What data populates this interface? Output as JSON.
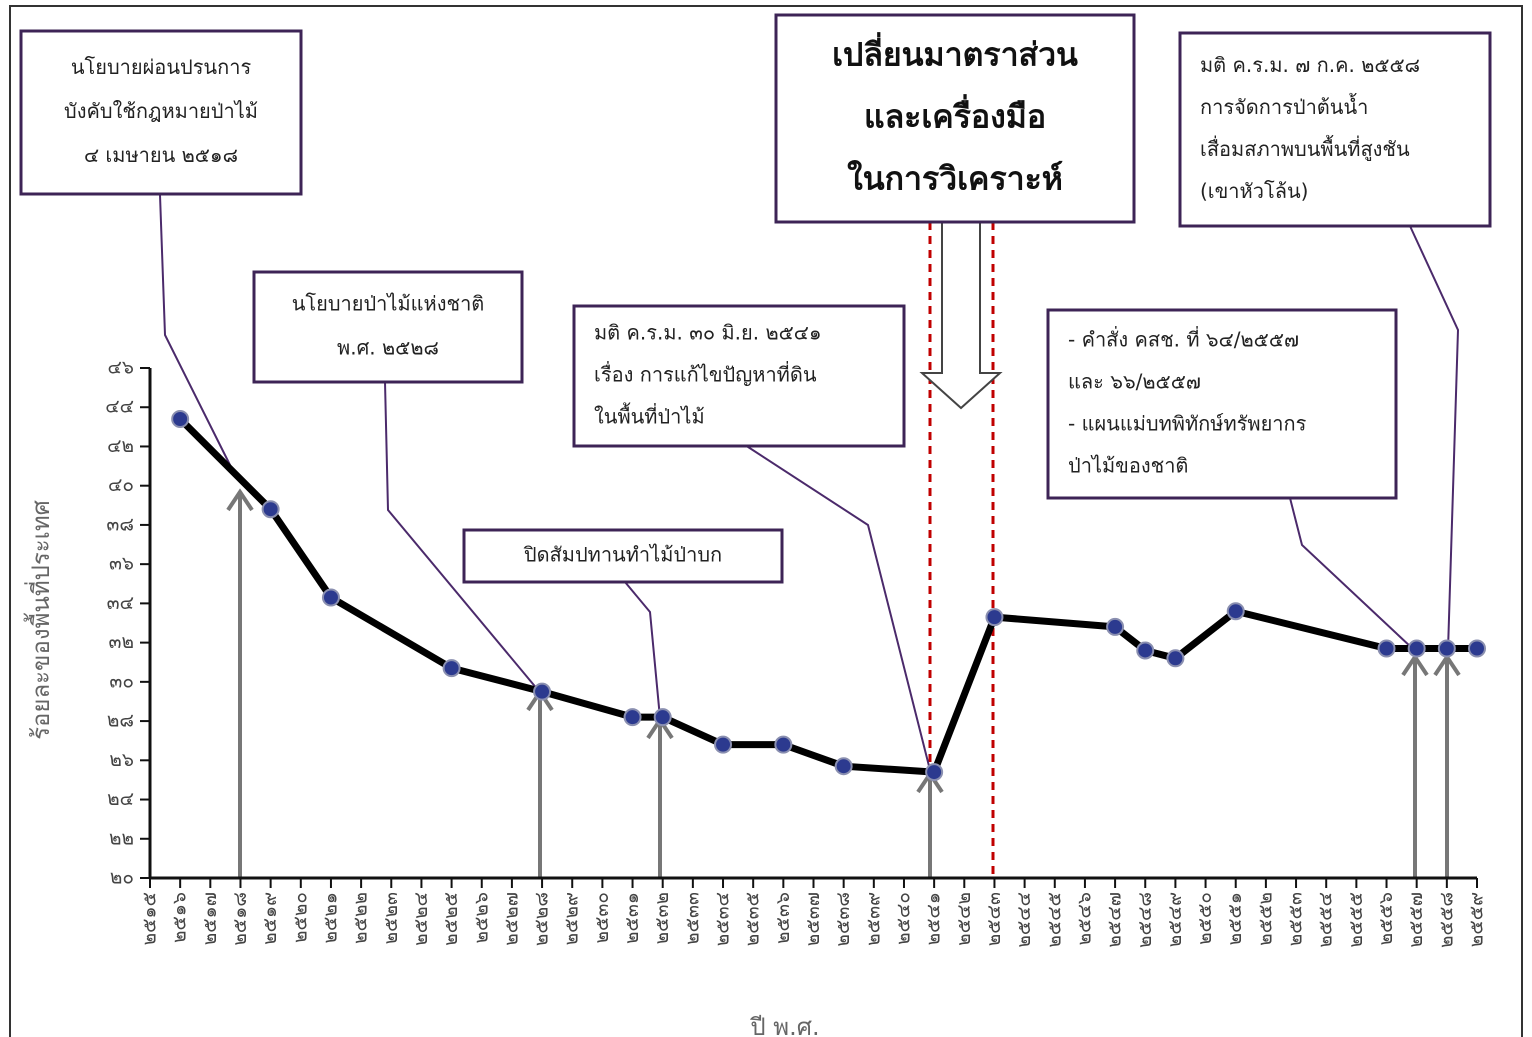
{
  "chart_data": {
    "type": "line",
    "x_label": "ปี พ.ศ.",
    "y_label": "ร้อยละของพื้นที่ประเทศ",
    "x": [
      2516,
      2519,
      2521,
      2525,
      2528,
      2531,
      2532,
      2534,
      2536,
      2538,
      2541,
      2543,
      2547,
      2548,
      2549,
      2551,
      2556,
      2557,
      2558,
      2559
    ],
    "series": [
      {
        "color": "#000000",
        "marker_color": "#2c3a8f",
        "values": [
          43.4,
          38.8,
          34.3,
          30.7,
          29.5,
          28.2,
          28.2,
          26.8,
          26.8,
          25.7,
          25.4,
          33.3,
          32.8,
          31.6,
          31.2,
          33.6,
          31.7,
          31.7,
          31.7,
          31.7
        ]
      }
    ],
    "xlim": [
      2515,
      2559
    ],
    "xticks": [
      {
        "value": 2515,
        "label": "๒๕๑๕"
      },
      {
        "value": 2516,
        "label": "๒๕๑๖"
      },
      {
        "value": 2517,
        "label": "๒๕๑๗"
      },
      {
        "value": 2518,
        "label": "๒๕๑๘"
      },
      {
        "value": 2519,
        "label": "๒๕๑๙"
      },
      {
        "value": 2520,
        "label": "๒๕๒๐"
      },
      {
        "value": 2521,
        "label": "๒๕๒๑"
      },
      {
        "value": 2522,
        "label": "๒๕๒๒"
      },
      {
        "value": 2523,
        "label": "๒๕๒๓"
      },
      {
        "value": 2524,
        "label": "๒๕๒๔"
      },
      {
        "value": 2525,
        "label": "๒๕๒๕"
      },
      {
        "value": 2526,
        "label": "๒๕๒๖"
      },
      {
        "value": 2527,
        "label": "๒๕๒๗"
      },
      {
        "value": 2528,
        "label": "๒๕๒๘"
      },
      {
        "value": 2529,
        "label": "๒๕๒๙"
      },
      {
        "value": 2530,
        "label": "๒๕๓๐"
      },
      {
        "value": 2531,
        "label": "๒๕๓๑"
      },
      {
        "value": 2532,
        "label": "๒๕๓๒"
      },
      {
        "value": 2533,
        "label": "๒๕๓๓"
      },
      {
        "value": 2534,
        "label": "๒๕๓๔"
      },
      {
        "value": 2535,
        "label": "๒๕๓๕"
      },
      {
        "value": 2536,
        "label": "๒๕๓๖"
      },
      {
        "value": 2537,
        "label": "๒๕๓๗"
      },
      {
        "value": 2538,
        "label": "๒๕๓๘"
      },
      {
        "value": 2539,
        "label": "๒๕๓๙"
      },
      {
        "value": 2540,
        "label": "๒๕๔๐"
      },
      {
        "value": 2541,
        "label": "๒๕๔๑"
      },
      {
        "value": 2542,
        "label": "๒๕๔๒"
      },
      {
        "value": 2543,
        "label": "๒๕๔๓"
      },
      {
        "value": 2544,
        "label": "๒๕๔๔"
      },
      {
        "value": 2545,
        "label": "๒๕๔๕"
      },
      {
        "value": 2546,
        "label": "๒๕๔๖"
      },
      {
        "value": 2547,
        "label": "๒๕๔๗"
      },
      {
        "value": 2548,
        "label": "๒๕๔๘"
      },
      {
        "value": 2549,
        "label": "๒๕๔๙"
      },
      {
        "value": 2550,
        "label": "๒๕๕๐"
      },
      {
        "value": 2551,
        "label": "๒๕๕๑"
      },
      {
        "value": 2552,
        "label": "๒๕๕๒"
      },
      {
        "value": 2553,
        "label": "๒๕๕๓"
      },
      {
        "value": 2554,
        "label": "๒๕๕๔"
      },
      {
        "value": 2555,
        "label": "๒๕๕๕"
      },
      {
        "value": 2556,
        "label": "๒๕๕๖"
      },
      {
        "value": 2557,
        "label": "๒๕๕๗"
      },
      {
        "value": 2558,
        "label": "๒๕๕๘"
      },
      {
        "value": 2559,
        "label": "๒๕๕๙"
      }
    ],
    "ylim": [
      20,
      46
    ],
    "yticks": [
      {
        "value": 20,
        "label": "๒๐"
      },
      {
        "value": 22,
        "label": "๒๒"
      },
      {
        "value": 24,
        "label": "๒๔"
      },
      {
        "value": 26,
        "label": "๒๖"
      },
      {
        "value": 28,
        "label": "๒๘"
      },
      {
        "value": 30,
        "label": "๓๐"
      },
      {
        "value": 32,
        "label": "๓๒"
      },
      {
        "value": 34,
        "label": "๓๔"
      },
      {
        "value": 36,
        "label": "๓๖"
      },
      {
        "value": 38,
        "label": "๓๘"
      },
      {
        "value": 40,
        "label": "๔๐"
      },
      {
        "value": 42,
        "label": "๔๒"
      },
      {
        "value": 44,
        "label": "๔๔"
      },
      {
        "value": 46,
        "label": "๔๖"
      }
    ],
    "annotations": [
      {
        "lines": [
          "นโยบายผ่อนปรนการ",
          "บังคับใช้กฎหมายป่าไม้",
          "๔ เมษายน ๒๕๑๘"
        ]
      },
      {
        "lines": [
          "นโยบายป่าไม้แห่งชาติ",
          "พ.ศ. ๒๕๒๘"
        ]
      },
      {
        "lines": [
          "ปิดสัมปทานทำไม้ป่าบก"
        ]
      },
      {
        "lines": [
          "มติ ค.ร.ม.  ๓๐ มิ.ย. ๒๕๔๑",
          "เรื่อง การแก้ไขปัญหาที่ดิน",
          "ในพื้นที่ป่าไม้"
        ]
      },
      {
        "lines": [
          "เปลี่ยนมาตราส่วน",
          "และเครื่องมือ",
          "ในการวิเคราะห์"
        ]
      },
      {
        "lines": [
          "มติ ค.ร.ม. ๗ ก.ค. ๒๕๕๘",
          "การจัดการป่าต้นน้ำ",
          "เสื่อมสภาพบนพื้นที่สูงชัน",
          "(เขาหัวโล้น)"
        ]
      },
      {
        "lines": [
          "- คำสั่ง คสช. ที่ ๖๔/๒๕๕๗",
          "  และ ๖๖/๒๕๕๗",
          "- แผนแม่บทพิทักษ์ทรัพยากร",
          "  ป่าไม้ของชาติ"
        ]
      }
    ]
  }
}
